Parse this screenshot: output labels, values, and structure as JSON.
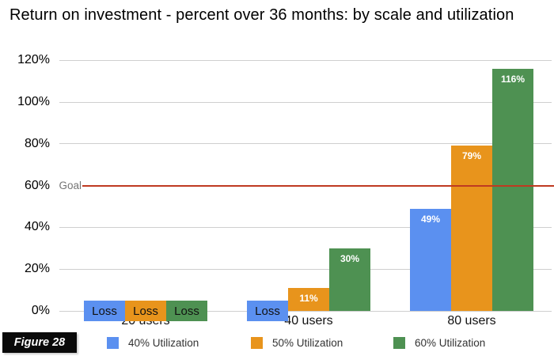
{
  "title": "Return on investment - percent over 36 months: by scale and utilization",
  "figure_label": "Figure 28",
  "chart_data": {
    "type": "bar",
    "title": "Return on investment - percent over 36 months: by scale and utilization",
    "categories": [
      "20 users",
      "40 users",
      "80 users"
    ],
    "series": [
      {
        "name": "40% Utilization",
        "color": "#5b90f0",
        "values": [
          null,
          null,
          49
        ],
        "labels": [
          "Loss",
          "Loss",
          "49%"
        ]
      },
      {
        "name": "50% Utilization",
        "color": "#e8941c",
        "values": [
          null,
          11,
          79
        ],
        "labels": [
          "Loss",
          "11%",
          "79%"
        ]
      },
      {
        "name": "60% Utilization",
        "color": "#4e9152",
        "values": [
          null,
          30,
          116
        ],
        "labels": [
          "Loss",
          "30%",
          "116%"
        ]
      }
    ],
    "loss_label": "Loss",
    "goal_line": {
      "label": "Goal",
      "value": 60,
      "color": "#bf3a21"
    },
    "y_axis": {
      "min": 0,
      "max": 120,
      "unit": "%",
      "ticks": [
        "0%",
        "20%",
        "40%",
        "60%",
        "80%",
        "100%",
        "120%"
      ],
      "tick_values": [
        0,
        20,
        40,
        60,
        80,
        100,
        120
      ]
    },
    "gridline_color": "#cfcfcf",
    "legend_position": "bottom"
  }
}
